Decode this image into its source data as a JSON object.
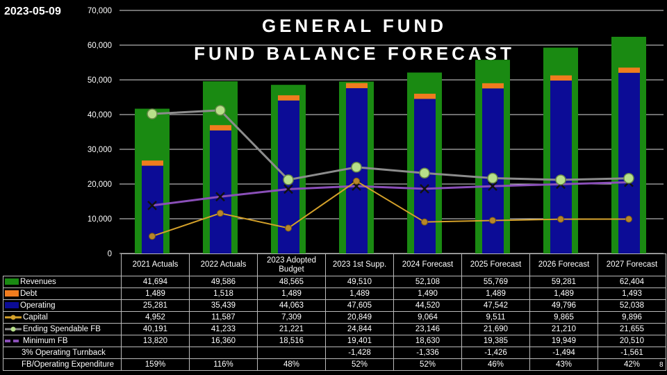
{
  "date": "2023-05-09",
  "title_line1": "GENERAL FUND",
  "title_line2": "FUND BALANCE FORECAST",
  "page_number": "8",
  "chart_data": {
    "type": "bar",
    "categories": [
      "2021 Actuals",
      "2022 Actuals",
      "2023 Adopted Budget",
      "2023 1st Supp.",
      "2024 Forecast",
      "2025 Forecast",
      "2026 Forecast",
      "2027 Forecast"
    ],
    "ylim": [
      0,
      70000
    ],
    "yticks": [
      "0",
      "10,000",
      "20,000",
      "30,000",
      "40,000",
      "50,000",
      "60,000",
      "70,000"
    ],
    "grid": true,
    "legend": "data-table",
    "colors": {
      "Revenues": "#1a8a12",
      "Debt": "#f07c1e",
      "Operating": "#0c0c96",
      "Capital": "#d4a12a",
      "Ending Spendable FB": "#8c8c8c",
      "Minimum FB": "#8a4fb8"
    },
    "series": [
      {
        "name": "Revenues",
        "kind": "bar",
        "values": [
          41694,
          49586,
          48565,
          49510,
          52108,
          55769,
          59281,
          62404
        ]
      },
      {
        "name": "Debt",
        "kind": "stacked-bar",
        "values": [
          1489,
          1518,
          1489,
          1489,
          1490,
          1489,
          1489,
          1493
        ]
      },
      {
        "name": "Operating",
        "kind": "stacked-bar",
        "values": [
          25281,
          35439,
          44063,
          47605,
          44520,
          47542,
          49796,
          52038
        ]
      },
      {
        "name": "Capital",
        "kind": "line",
        "values": [
          4952,
          11587,
          7309,
          20849,
          9064,
          9511,
          9865,
          9896
        ]
      },
      {
        "name": "Ending Spendable FB",
        "kind": "line",
        "values": [
          40191,
          41233,
          21221,
          24844,
          23146,
          21690,
          21210,
          21655
        ]
      },
      {
        "name": "Minimum FB",
        "kind": "line",
        "values": [
          13820,
          16360,
          18516,
          19401,
          18630,
          19385,
          19949,
          20510
        ]
      }
    ],
    "table_rows": [
      {
        "label": "Revenues",
        "icon": "bar",
        "cells": [
          "41,694",
          "49,586",
          "48,565",
          "49,510",
          "52,108",
          "55,769",
          "59,281",
          "62,404"
        ]
      },
      {
        "label": "Debt",
        "icon": "bar",
        "cells": [
          "1,489",
          "1,518",
          "1,489",
          "1,489",
          "1,490",
          "1,489",
          "1,489",
          "1,493"
        ]
      },
      {
        "label": "Operating",
        "icon": "bar",
        "cells": [
          "25,281",
          "35,439",
          "44,063",
          "47,605",
          "44,520",
          "47,542",
          "49,796",
          "52,038"
        ]
      },
      {
        "label": "Capital",
        "icon": "line",
        "cells": [
          "4,952",
          "11,587",
          "7,309",
          "20,849",
          "9,064",
          "9,511",
          "9,865",
          "9,896"
        ]
      },
      {
        "label": "Ending Spendable FB",
        "icon": "line",
        "cells": [
          "40,191",
          "41,233",
          "21,221",
          "24,844",
          "23,146",
          "21,690",
          "21,210",
          "21,655"
        ]
      },
      {
        "label": "Minimum FB",
        "icon": "dash",
        "cells": [
          "13,820",
          "16,360",
          "18,516",
          "19,401",
          "18,630",
          "19,385",
          "19,949",
          "20,510"
        ]
      },
      {
        "label": "3% Operating Turnback",
        "icon": "none",
        "cells": [
          "",
          "",
          "",
          "-1,428",
          "-1,336",
          "-1,426",
          "-1,494",
          "-1,561"
        ]
      },
      {
        "label": "FB/Operating Expenditure",
        "icon": "none",
        "cells": [
          "159%",
          "116%",
          "48%",
          "52%",
          "52%",
          "46%",
          "43%",
          "42%"
        ]
      }
    ]
  }
}
